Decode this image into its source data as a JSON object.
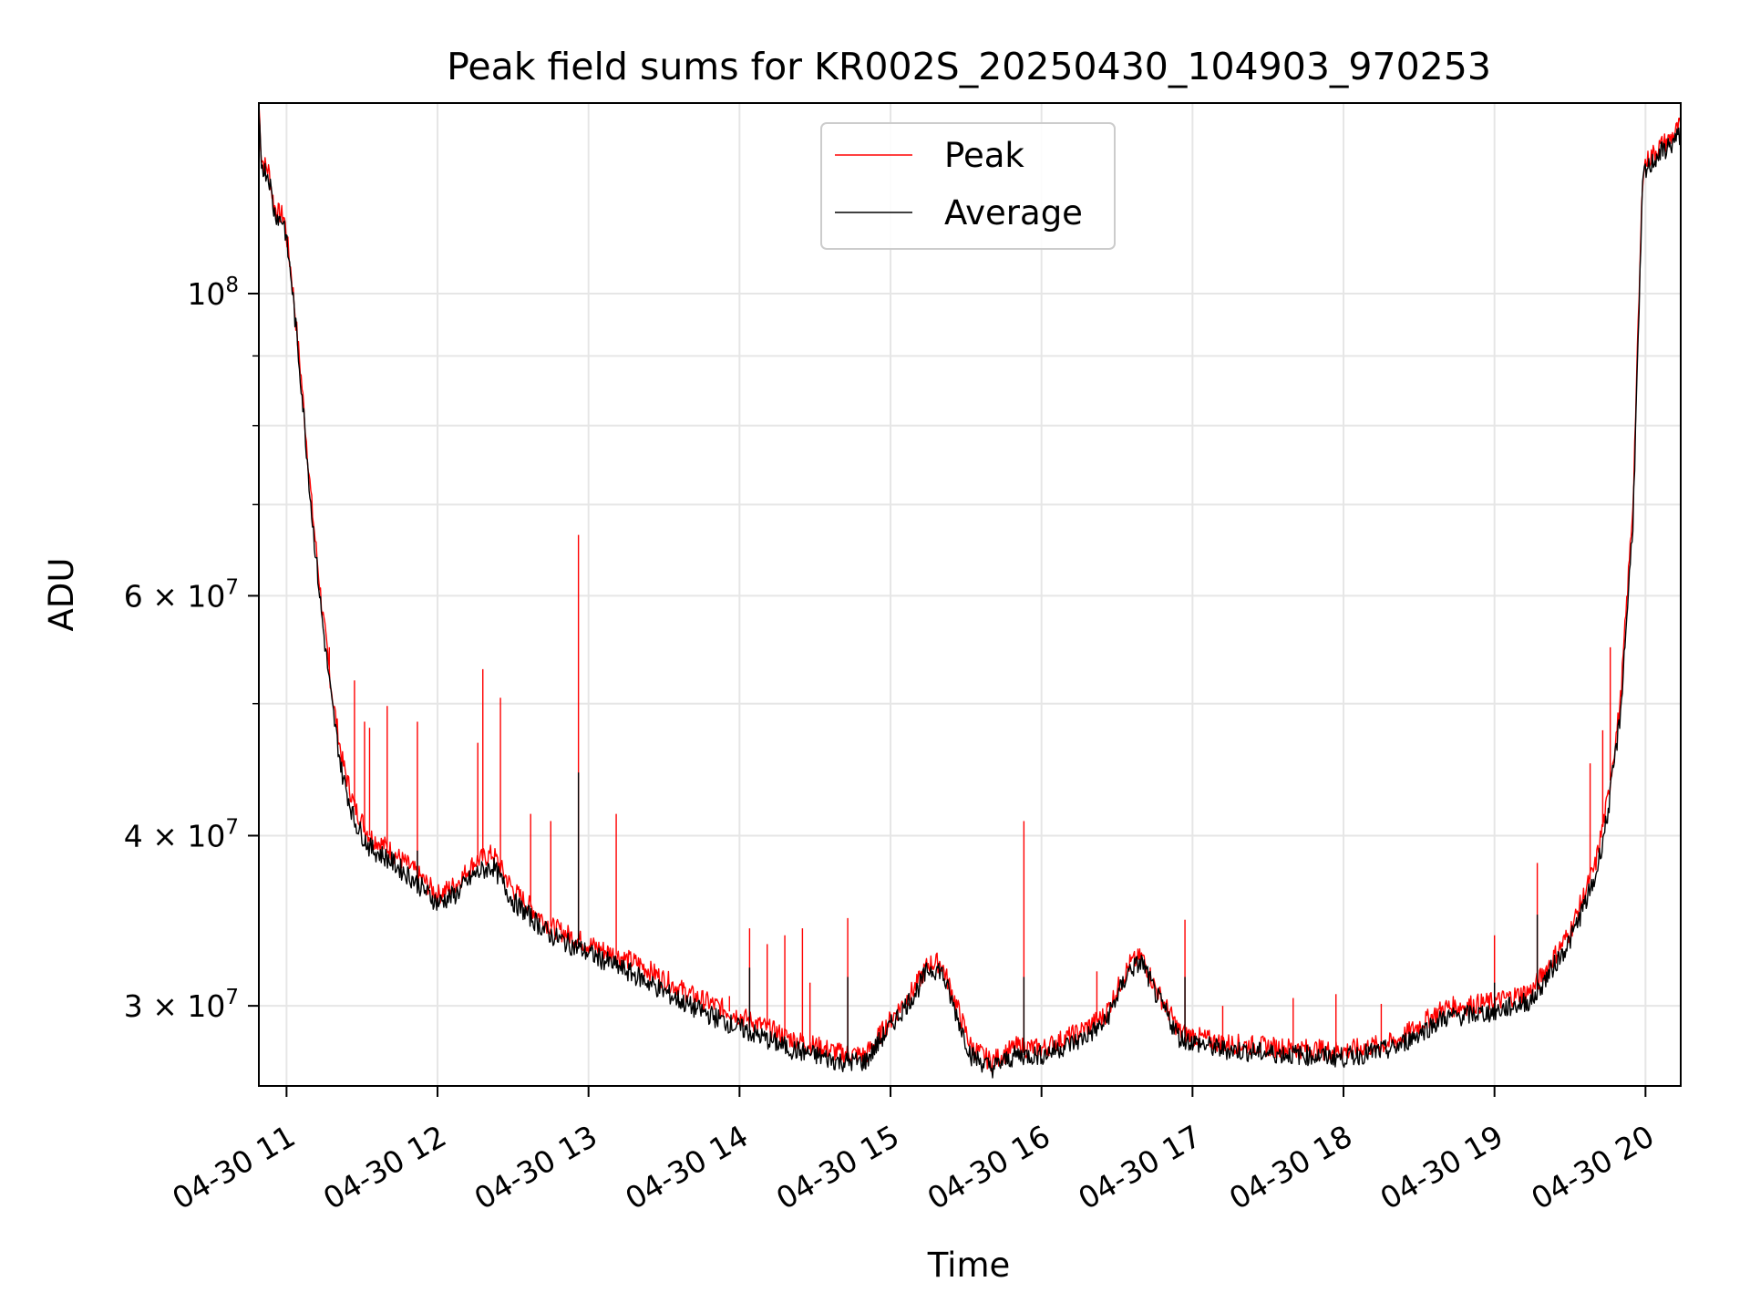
{
  "chart_data": {
    "type": "line",
    "title": "Peak field sums for KR002S_20250430_104903_970253",
    "xlabel": "Time",
    "ylabel": "ADU",
    "x_format": "datetime",
    "x_range": [
      "2025-04-30 10:49",
      "2025-04-30 20:14"
    ],
    "x_ticks": [
      {
        "t": "2025-04-30 11:00",
        "label": "04-30 11"
      },
      {
        "t": "2025-04-30 12:00",
        "label": "04-30 12"
      },
      {
        "t": "2025-04-30 13:00",
        "label": "04-30 13"
      },
      {
        "t": "2025-04-30 14:00",
        "label": "04-30 14"
      },
      {
        "t": "2025-04-30 15:00",
        "label": "04-30 15"
      },
      {
        "t": "2025-04-30 16:00",
        "label": "04-30 16"
      },
      {
        "t": "2025-04-30 17:00",
        "label": "04-30 17"
      },
      {
        "t": "2025-04-30 18:00",
        "label": "04-30 18"
      },
      {
        "t": "2025-04-30 19:00",
        "label": "04-30 19"
      },
      {
        "t": "2025-04-30 20:00",
        "label": "04-30 20"
      }
    ],
    "y_scale": "log",
    "ylim": [
      26200000,
      138000000
    ],
    "y_ticks": [
      {
        "value": 100000000,
        "base": "10",
        "exp": "8"
      },
      {
        "value": 60000000,
        "base": "6 × 10",
        "exp": "7"
      },
      {
        "value": 40000000,
        "base": "4 × 10",
        "exp": "7"
      },
      {
        "value": 30000000,
        "base": "3 × 10",
        "exp": "7"
      }
    ],
    "y_grid_minor": [
      50000000,
      70000000,
      80000000,
      90000000
    ],
    "grid": true,
    "legend": {
      "position": "top-center"
    },
    "series": [
      {
        "name": "Peak",
        "color": "#ff0000",
        "points": [
          [
            "2025-04-30 10:49",
            138000000
          ],
          [
            "2025-04-30 10:50",
            126000000
          ],
          [
            "2025-04-30 10:51",
            124500000
          ],
          [
            "2025-04-30 10:53",
            123000000
          ],
          [
            "2025-04-30 10:55",
            116000000
          ],
          [
            "2025-04-30 10:57",
            114500000
          ],
          [
            "2025-04-30 10:59",
            114000000
          ],
          [
            "2025-04-30 11:02",
            103000000
          ],
          [
            "2025-04-30 11:06",
            86000000
          ],
          [
            "2025-04-30 11:10",
            70000000
          ],
          [
            "2025-04-30 11:14",
            59000000
          ],
          [
            "2025-04-30 11:18",
            51000000
          ],
          [
            "2025-04-30 11:22",
            45500000
          ],
          [
            "2025-04-30 11:27",
            42000000
          ],
          [
            "2025-04-30 11:33",
            40000000
          ],
          [
            "2025-04-30 11:40",
            39200000
          ],
          [
            "2025-04-30 11:50",
            37800000
          ],
          [
            "2025-04-30 12:00",
            36200000
          ],
          [
            "2025-04-30 12:07",
            36800000
          ],
          [
            "2025-04-30 12:15",
            38300000
          ],
          [
            "2025-04-30 12:22",
            38800000
          ],
          [
            "2025-04-30 12:30",
            36500000
          ],
          [
            "2025-04-30 12:45",
            34300000
          ],
          [
            "2025-04-30 13:00",
            33300000
          ],
          [
            "2025-04-30 13:20",
            32200000
          ],
          [
            "2025-04-30 13:40",
            30600000
          ],
          [
            "2025-04-30 14:00",
            29500000
          ],
          [
            "2025-04-30 14:20",
            28400000
          ],
          [
            "2025-04-30 14:40",
            27700000
          ],
          [
            "2025-04-30 14:50",
            27600000
          ],
          [
            "2025-04-30 15:00",
            29300000
          ],
          [
            "2025-04-30 15:10",
            31000000
          ],
          [
            "2025-04-30 15:15",
            32200000
          ],
          [
            "2025-04-30 15:20",
            32300000
          ],
          [
            "2025-04-30 15:25",
            30500000
          ],
          [
            "2025-04-30 15:32",
            28000000
          ],
          [
            "2025-04-30 15:40",
            27300000
          ],
          [
            "2025-04-30 15:50",
            28000000
          ],
          [
            "2025-04-30 16:00",
            27900000
          ],
          [
            "2025-04-30 16:15",
            28700000
          ],
          [
            "2025-04-30 16:25",
            29500000
          ],
          [
            "2025-04-30 16:35",
            32200000
          ],
          [
            "2025-04-30 16:40",
            32600000
          ],
          [
            "2025-04-30 16:45",
            31000000
          ],
          [
            "2025-04-30 16:55",
            28700000
          ],
          [
            "2025-04-30 17:10",
            28200000
          ],
          [
            "2025-04-30 17:30",
            28000000
          ],
          [
            "2025-04-30 18:00",
            27800000
          ],
          [
            "2025-04-30 18:20",
            28200000
          ],
          [
            "2025-04-30 18:40",
            29900000
          ],
          [
            "2025-04-30 19:00",
            30200000
          ],
          [
            "2025-04-30 19:15",
            30800000
          ],
          [
            "2025-04-30 19:30",
            34000000
          ],
          [
            "2025-04-30 19:40",
            38000000
          ],
          [
            "2025-04-30 19:45",
            42500000
          ],
          [
            "2025-04-30 19:50",
            50000000
          ],
          [
            "2025-04-30 19:55",
            70000000
          ],
          [
            "2025-04-30 19:59",
            124000000
          ],
          [
            "2025-04-30 20:05",
            128000000
          ],
          [
            "2025-04-30 20:10",
            130000000
          ],
          [
            "2025-04-30 20:14",
            133000000
          ]
        ],
        "spikes": [
          [
            "2025-04-30 11:17",
            55000000
          ],
          [
            "2025-04-30 11:27",
            52000000
          ],
          [
            "2025-04-30 11:31",
            48500000
          ],
          [
            "2025-04-30 11:33",
            48000000
          ],
          [
            "2025-04-30 11:40",
            49800000
          ],
          [
            "2025-04-30 11:52",
            48500000
          ],
          [
            "2025-04-30 12:16",
            46800000
          ],
          [
            "2025-04-30 12:18",
            53000000
          ],
          [
            "2025-04-30 12:25",
            50500000
          ],
          [
            "2025-04-30 12:37",
            41500000
          ],
          [
            "2025-04-30 12:45",
            41000000
          ],
          [
            "2025-04-30 12:56",
            66500000
          ],
          [
            "2025-04-30 13:11",
            41500000
          ],
          [
            "2025-04-30 13:56",
            30500000
          ],
          [
            "2025-04-30 14:04",
            34200000
          ],
          [
            "2025-04-30 14:11",
            33300000
          ],
          [
            "2025-04-30 14:18",
            33800000
          ],
          [
            "2025-04-30 14:25",
            34200000
          ],
          [
            "2025-04-30 14:28",
            31200000
          ],
          [
            "2025-04-30 14:43",
            34800000
          ],
          [
            "2025-04-30 15:53",
            41000000
          ],
          [
            "2025-04-30 16:22",
            31800000
          ],
          [
            "2025-04-30 16:57",
            34700000
          ],
          [
            "2025-04-30 17:12",
            30000000
          ],
          [
            "2025-04-30 17:40",
            30400000
          ],
          [
            "2025-04-30 17:57",
            30600000
          ],
          [
            "2025-04-30 18:15",
            30100000
          ],
          [
            "2025-04-30 19:00",
            33800000
          ],
          [
            "2025-04-30 19:17",
            38200000
          ],
          [
            "2025-04-30 19:38",
            45200000
          ],
          [
            "2025-04-30 19:43",
            47800000
          ],
          [
            "2025-04-30 19:46",
            55000000
          ]
        ]
      },
      {
        "name": "Average",
        "color": "#000000",
        "points": [
          [
            "2025-04-30 10:49",
            134000000
          ],
          [
            "2025-04-30 10:50",
            125000000
          ],
          [
            "2025-04-30 10:51",
            123500000
          ],
          [
            "2025-04-30 10:53",
            122000000
          ],
          [
            "2025-04-30 10:55",
            115000000
          ],
          [
            "2025-04-30 10:57",
            113500000
          ],
          [
            "2025-04-30 10:59",
            113000000
          ],
          [
            "2025-04-30 11:02",
            102000000
          ],
          [
            "2025-04-30 11:06",
            85000000
          ],
          [
            "2025-04-30 11:10",
            69000000
          ],
          [
            "2025-04-30 11:14",
            58000000
          ],
          [
            "2025-04-30 11:18",
            50000000
          ],
          [
            "2025-04-30 11:22",
            44500000
          ],
          [
            "2025-04-30 11:27",
            41000000
          ],
          [
            "2025-04-30 11:33",
            39200000
          ],
          [
            "2025-04-30 11:40",
            38500000
          ],
          [
            "2025-04-30 11:50",
            37200000
          ],
          [
            "2025-04-30 12:00",
            35700000
          ],
          [
            "2025-04-30 12:07",
            36200000
          ],
          [
            "2025-04-30 12:15",
            37500000
          ],
          [
            "2025-04-30 12:22",
            38000000
          ],
          [
            "2025-04-30 12:30",
            35800000
          ],
          [
            "2025-04-30 12:45",
            33800000
          ],
          [
            "2025-04-30 13:00",
            32800000
          ],
          [
            "2025-04-30 13:20",
            31500000
          ],
          [
            "2025-04-30 13:40",
            30000000
          ],
          [
            "2025-04-30 14:00",
            28900000
          ],
          [
            "2025-04-30 14:20",
            27900000
          ],
          [
            "2025-04-30 14:40",
            27300000
          ],
          [
            "2025-04-30 14:50",
            27300000
          ],
          [
            "2025-04-30 15:00",
            29000000
          ],
          [
            "2025-04-30 15:10",
            30700000
          ],
          [
            "2025-04-30 15:15",
            31900000
          ],
          [
            "2025-04-30 15:20",
            31900000
          ],
          [
            "2025-04-30 15:25",
            30000000
          ],
          [
            "2025-04-30 15:32",
            27600000
          ],
          [
            "2025-04-30 15:40",
            27000000
          ],
          [
            "2025-04-30 15:50",
            27600000
          ],
          [
            "2025-04-30 16:00",
            27600000
          ],
          [
            "2025-04-30 16:15",
            28300000
          ],
          [
            "2025-04-30 16:25",
            29100000
          ],
          [
            "2025-04-30 16:35",
            31900000
          ],
          [
            "2025-04-30 16:40",
            32300000
          ],
          [
            "2025-04-30 16:45",
            30700000
          ],
          [
            "2025-04-30 16:55",
            28400000
          ],
          [
            "2025-04-30 17:10",
            27900000
          ],
          [
            "2025-04-30 17:30",
            27700000
          ],
          [
            "2025-04-30 18:00",
            27500000
          ],
          [
            "2025-04-30 18:20",
            27900000
          ],
          [
            "2025-04-30 18:40",
            29400000
          ],
          [
            "2025-04-30 19:00",
            29700000
          ],
          [
            "2025-04-30 19:15",
            30300000
          ],
          [
            "2025-04-30 19:30",
            33500000
          ],
          [
            "2025-04-30 19:40",
            37200000
          ],
          [
            "2025-04-30 19:45",
            41500000
          ],
          [
            "2025-04-30 19:50",
            49000000
          ],
          [
            "2025-04-30 19:55",
            68000000
          ],
          [
            "2025-04-30 19:59",
            122000000
          ],
          [
            "2025-04-30 20:05",
            126500000
          ],
          [
            "2025-04-30 20:10",
            128500000
          ],
          [
            "2025-04-30 20:14",
            131000000
          ]
        ],
        "spikes": [
          [
            "2025-04-30 11:52",
            39000000
          ],
          [
            "2025-04-30 12:56",
            44500000
          ],
          [
            "2025-04-30 14:04",
            32000000
          ],
          [
            "2025-04-30 14:43",
            31500000
          ],
          [
            "2025-04-30 15:53",
            31500000
          ],
          [
            "2025-04-30 16:57",
            31500000
          ],
          [
            "2025-04-30 19:00",
            31200000
          ],
          [
            "2025-04-30 19:17",
            35000000
          ]
        ]
      }
    ]
  }
}
